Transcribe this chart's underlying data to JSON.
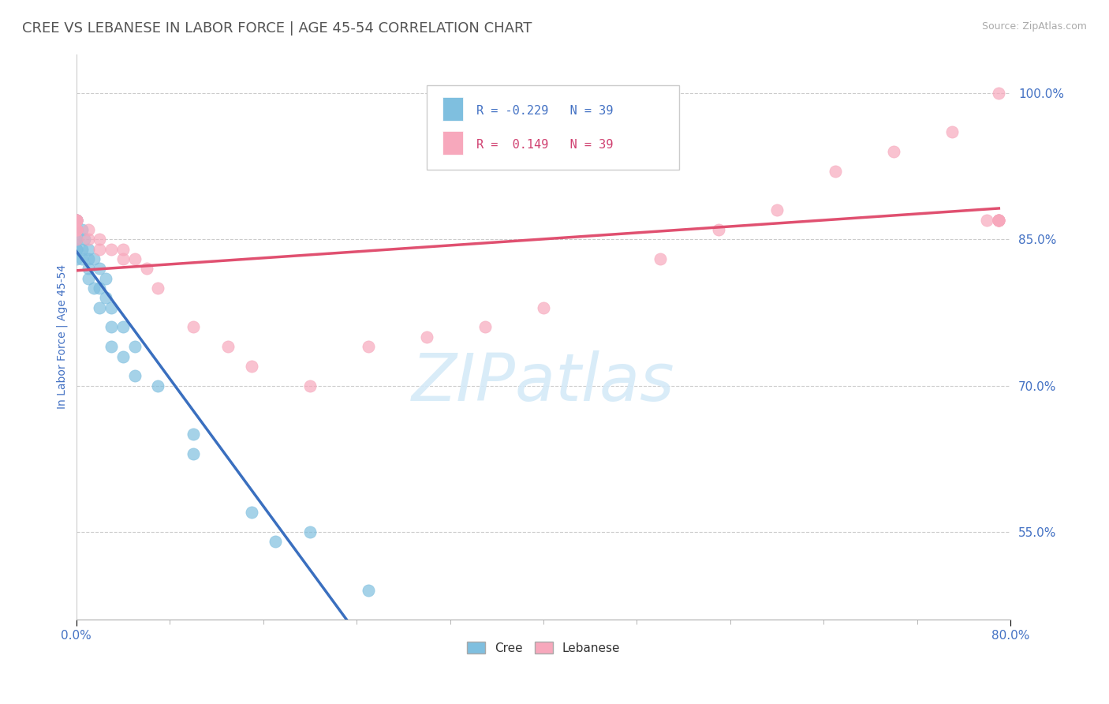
{
  "title": "CREE VS LEBANESE IN LABOR FORCE | AGE 45-54 CORRELATION CHART",
  "source": "Source: ZipAtlas.com",
  "ylabel": "In Labor Force | Age 45-54",
  "xlim": [
    0.0,
    0.8
  ],
  "ylim": [
    0.46,
    1.04
  ],
  "yticks": [
    0.55,
    0.7,
    0.85,
    1.0
  ],
  "ytick_labels": [
    "55.0%",
    "70.0%",
    "85.0%",
    "100.0%"
  ],
  "xticks": [
    0.0,
    0.8
  ],
  "xtick_labels": [
    "0.0%",
    "80.0%"
  ],
  "legend_r_cree": "R = -0.229",
  "legend_n_cree": "N = 39",
  "legend_r_leb": "R =  0.149",
  "legend_n_leb": "N = 39",
  "cree_color": "#7fbfdf",
  "lebanese_color": "#f7a8bc",
  "trend_cree_color": "#3a6fbf",
  "trend_leb_color": "#e05070",
  "dash_color": "#aac8e8",
  "grid_color": "#cccccc",
  "background_color": "#ffffff",
  "title_color": "#555555",
  "axis_label_color": "#4472c4",
  "watermark_color": "#d5eaf8",
  "cree_x": [
    0.0,
    0.0,
    0.0,
    0.0,
    0.0,
    0.0,
    0.0,
    0.0,
    0.0,
    0.0,
    0.005,
    0.005,
    0.005,
    0.007,
    0.01,
    0.01,
    0.01,
    0.01,
    0.015,
    0.015,
    0.02,
    0.02,
    0.02,
    0.025,
    0.025,
    0.03,
    0.03,
    0.03,
    0.04,
    0.04,
    0.05,
    0.05,
    0.07,
    0.1,
    0.1,
    0.15,
    0.17,
    0.2,
    0.25
  ],
  "cree_y": [
    0.87,
    0.87,
    0.87,
    0.86,
    0.86,
    0.85,
    0.85,
    0.84,
    0.84,
    0.83,
    0.86,
    0.84,
    0.83,
    0.85,
    0.84,
    0.83,
    0.82,
    0.81,
    0.83,
    0.8,
    0.82,
    0.8,
    0.78,
    0.81,
    0.79,
    0.78,
    0.76,
    0.74,
    0.76,
    0.73,
    0.74,
    0.71,
    0.7,
    0.65,
    0.63,
    0.57,
    0.54,
    0.55,
    0.49
  ],
  "leb_x": [
    0.0,
    0.0,
    0.0,
    0.0,
    0.0,
    0.0,
    0.0,
    0.0,
    0.01,
    0.01,
    0.02,
    0.02,
    0.03,
    0.04,
    0.04,
    0.05,
    0.06,
    0.07,
    0.1,
    0.13,
    0.15,
    0.2,
    0.25,
    0.3,
    0.35,
    0.4,
    0.5,
    0.55,
    0.6,
    0.65,
    0.7,
    0.75,
    0.78,
    0.79,
    0.79,
    0.79,
    0.79,
    0.79,
    0.79
  ],
  "leb_y": [
    0.87,
    0.87,
    0.87,
    0.87,
    0.86,
    0.86,
    0.86,
    0.85,
    0.86,
    0.85,
    0.85,
    0.84,
    0.84,
    0.84,
    0.83,
    0.83,
    0.82,
    0.8,
    0.76,
    0.74,
    0.72,
    0.7,
    0.74,
    0.75,
    0.76,
    0.78,
    0.83,
    0.86,
    0.88,
    0.92,
    0.94,
    0.96,
    0.87,
    0.87,
    0.87,
    0.87,
    0.87,
    0.87,
    1.0
  ],
  "title_fontsize": 13,
  "label_fontsize": 10,
  "tick_fontsize": 11,
  "watermark": "ZIPatlas"
}
